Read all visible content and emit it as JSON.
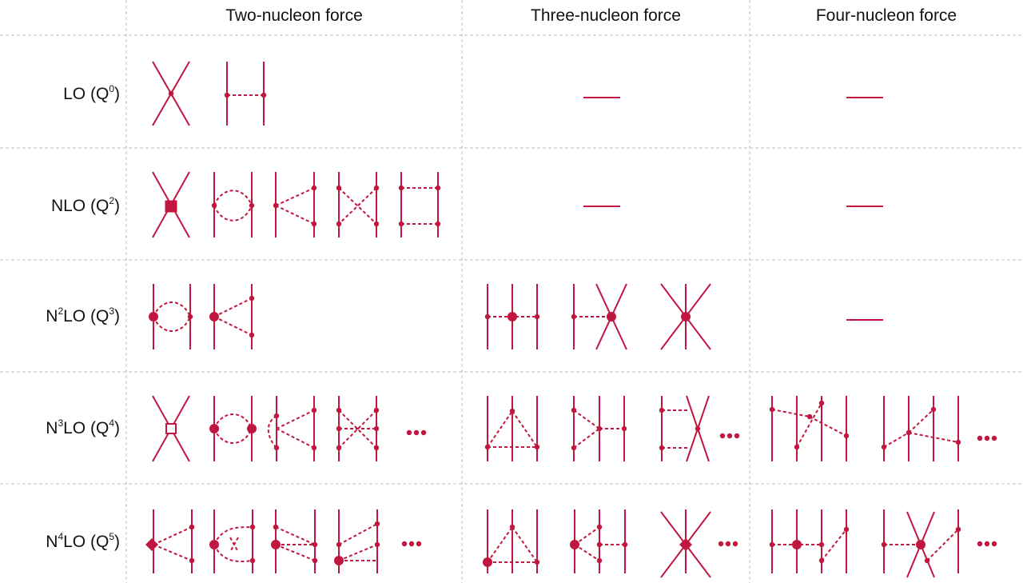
{
  "columns": [
    {
      "key": "two",
      "label": "Two-nucleon force"
    },
    {
      "key": "three",
      "label": "Three-nucleon force"
    },
    {
      "key": "four",
      "label": "Four-nucleon force"
    }
  ],
  "rows": [
    {
      "key": "lo",
      "base": "LO",
      "base_sup": "",
      "q_sup": "0"
    },
    {
      "key": "nlo",
      "base": "NLO",
      "base_sup": "",
      "q_sup": "2"
    },
    {
      "key": "n2lo",
      "base": "N",
      "base_sup": "2",
      "q_sup": "3"
    },
    {
      "key": "n3lo",
      "base": "N",
      "base_sup": "3",
      "q_sup": "4"
    },
    {
      "key": "n4lo",
      "base": "N",
      "base_sup": "4",
      "q_sup": "5"
    }
  ],
  "colors": {
    "diagram": "#c0163f",
    "grid": "#bdbdbd",
    "text": "#111111"
  },
  "cells": {
    "lo": {
      "two": [
        "contact-cross",
        "one-pion-exchange"
      ],
      "three": "none",
      "four": "none"
    },
    "nlo": {
      "two": [
        "contact-square",
        "two-pion-bubble",
        "two-pion-triangle",
        "two-pion-crossed-box",
        "two-pion-box"
      ],
      "three": "none",
      "four": "none"
    },
    "n2lo": {
      "two": [
        "two-pion-bubble-big-vertex",
        "two-pion-triangle-big-vertex"
      ],
      "three": [
        "two-pion-exchange-3n",
        "one-pion-contact-3n",
        "contact-3n"
      ],
      "four": "none"
    },
    "n3lo": {
      "two": [
        "contact-open-square",
        "two-pion-bubble-big",
        "two-pion-triangle-loop",
        "two-pion-crossed-box-loop",
        "ellipsis"
      ],
      "three": [
        "ring-3n",
        "two-pion-one-pion-3n",
        "contact-box-3n",
        "ellipsis"
      ],
      "four": [
        "pion-4n-a",
        "pion-4n-b",
        "ellipsis"
      ]
    },
    "n4lo": {
      "two": [
        "diamond-triangle",
        "crossed-bubble-big",
        "box-big-vertex",
        "crossed-box-big-vertex",
        "ellipsis"
      ],
      "three": [
        "ring-3n-big",
        "two-pion-big-3n",
        "contact-diamond-3n",
        "ellipsis"
      ],
      "four": [
        "pion-4n-c",
        "contact-4n-d",
        "ellipsis"
      ]
    }
  },
  "none_symbol": "—"
}
